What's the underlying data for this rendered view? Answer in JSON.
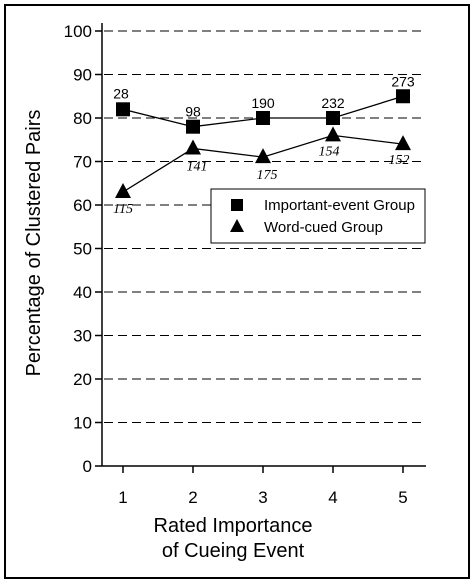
{
  "chart_data": {
    "type": "line",
    "xlabel_line1": "Rated Importance",
    "xlabel_line2": "of Cueing Event",
    "ylabel": "Percentage of Clustered Pairs",
    "ylim": [
      0,
      100
    ],
    "xlim": [
      0.7,
      5.3
    ],
    "x": [
      1,
      2,
      3,
      4,
      5
    ],
    "x_ticks": [
      "1",
      "2",
      "3",
      "4",
      "5"
    ],
    "y_ticks": [
      "0",
      "10",
      "20",
      "30",
      "40",
      "50",
      "60",
      "70",
      "80",
      "90",
      "100"
    ],
    "grid": "horizontal dashed",
    "legend_position": "right-middle",
    "series": [
      {
        "name": "Important-event Group",
        "marker": "square",
        "values": [
          82,
          78,
          80,
          80,
          85
        ],
        "n_labels": [
          "28",
          "98",
          "190",
          "232",
          "273"
        ]
      },
      {
        "name": "Word-cued Group",
        "marker": "triangle",
        "values": [
          63,
          73,
          71,
          76,
          74
        ],
        "n_labels": [
          "115",
          "141",
          "175",
          "154",
          "152"
        ]
      }
    ]
  }
}
